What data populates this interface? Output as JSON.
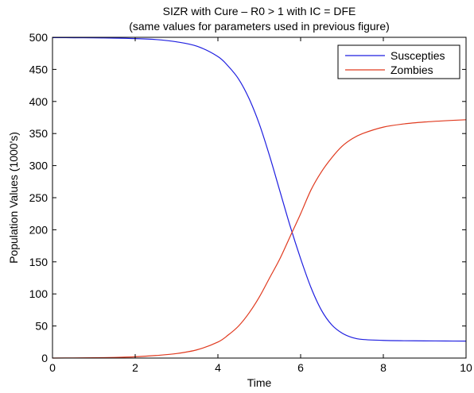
{
  "chart_data": {
    "type": "line",
    "title": "SIZR with Cure – R0 > 1 with IC = DFE",
    "subtitle": "(same values for parameters used in previous figure)",
    "xlabel": "Time",
    "ylabel": "Population Values (1000's)",
    "xlim": [
      0,
      10
    ],
    "ylim": [
      0,
      500
    ],
    "x_ticks": [
      0,
      2,
      4,
      6,
      8,
      10
    ],
    "y_ticks": [
      0,
      50,
      100,
      150,
      200,
      250,
      300,
      350,
      400,
      450,
      500
    ],
    "grid": false,
    "legend_position": "top-right",
    "x": [
      0,
      0.5,
      1,
      1.5,
      2,
      2.5,
      3,
      3.5,
      4,
      4.25,
      4.5,
      4.75,
      5,
      5.25,
      5.5,
      5.75,
      6,
      6.25,
      6.5,
      6.75,
      7,
      7.25,
      7.5,
      8,
      8.5,
      9,
      9.5,
      10
    ],
    "series": [
      {
        "name": "Suscepties",
        "color": "#1f1fe0",
        "values": [
          499.5,
          499.4,
          499.2,
          498.8,
          498,
          496.5,
          493,
          486,
          470,
          455,
          435,
          405,
          365,
          315,
          260,
          205,
          155,
          110,
          75,
          52,
          39,
          32,
          29,
          27.5,
          27,
          26.8,
          26.6,
          26.5
        ]
      },
      {
        "name": "Zombies",
        "color": "#e03a1f",
        "values": [
          0,
          0.2,
          0.5,
          1,
          2,
          4,
          7,
          13,
          25,
          36,
          50,
          70,
          95,
          125,
          155,
          190,
          225,
          262,
          290,
          312,
          330,
          342,
          350,
          360,
          365,
          368,
          370,
          371.5
        ]
      }
    ]
  }
}
